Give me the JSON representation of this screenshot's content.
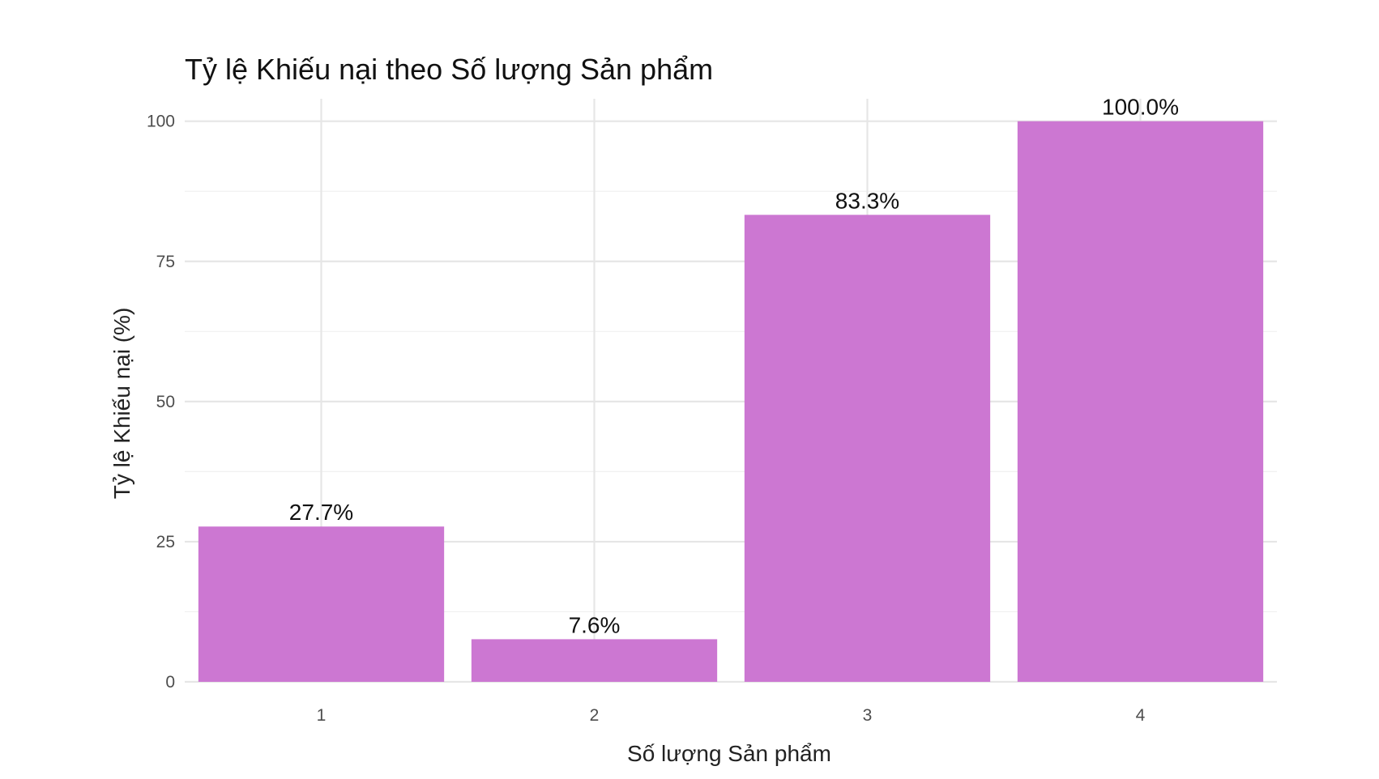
{
  "chart_data": {
    "type": "bar",
    "title": "Tỷ lệ Khiếu nại theo Số lượng Sản phẩm",
    "xlabel": "Số lượng Sản phẩm",
    "ylabel": "Tỷ lệ Khiếu nại (%)",
    "categories": [
      "1",
      "2",
      "3",
      "4"
    ],
    "values": [
      27.7,
      7.6,
      83.3,
      100.0
    ],
    "data_labels": [
      "27.7%",
      "7.6%",
      "83.3%",
      "100.0%"
    ],
    "y_ticks": [
      0,
      25,
      50,
      75,
      100
    ],
    "ylim": [
      0,
      104
    ],
    "bar_color": "#CC77D2",
    "grid": true,
    "legend": "none"
  }
}
